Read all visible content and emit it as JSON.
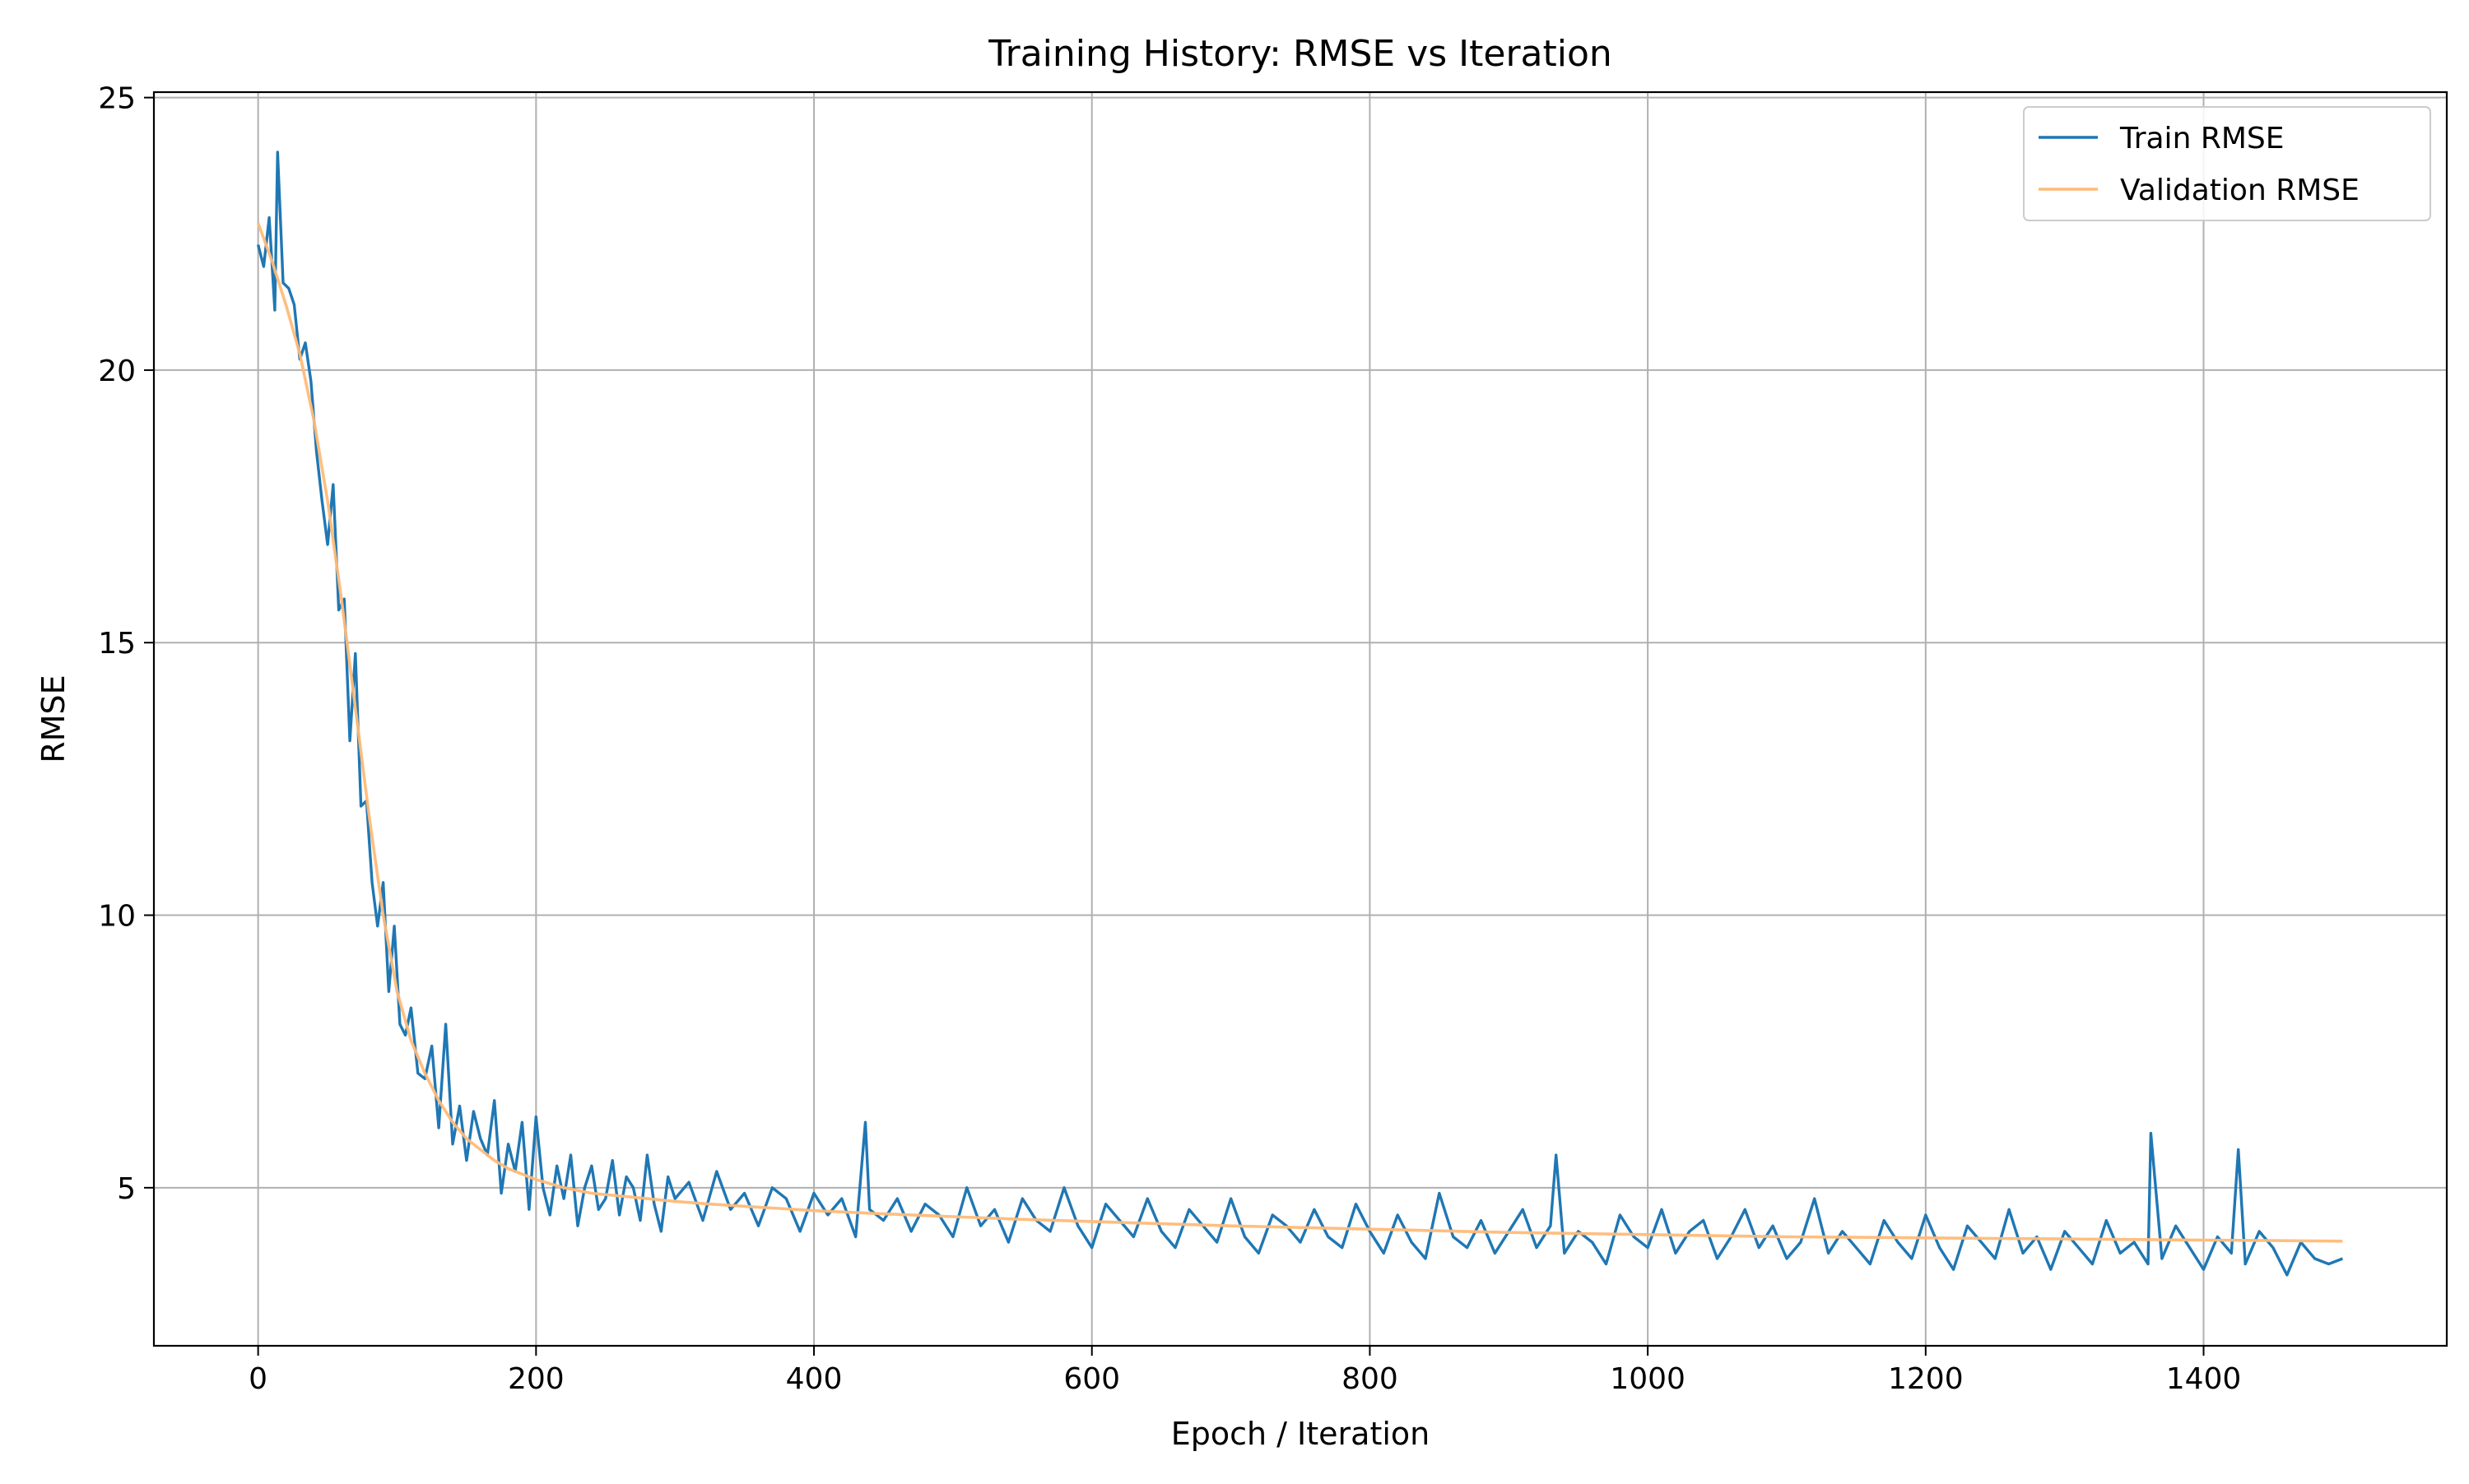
{
  "chart_data": {
    "type": "line",
    "title": "Training History: RMSE vs Iteration",
    "xlabel": "Epoch / Iteration",
    "ylabel": "RMSE",
    "xlim": [
      -75,
      1575
    ],
    "ylim": [
      2.1,
      25.1
    ],
    "xticks": [
      0,
      200,
      400,
      600,
      800,
      1000,
      1200,
      1400
    ],
    "yticks": [
      5,
      10,
      15,
      20,
      25
    ],
    "grid": true,
    "legend_position": "top-right",
    "series": [
      {
        "name": "Train RMSE",
        "color": "#1f77b4",
        "x": [
          0,
          4,
          8,
          12,
          14,
          18,
          22,
          26,
          30,
          34,
          38,
          42,
          46,
          50,
          54,
          58,
          62,
          66,
          70,
          74,
          78,
          82,
          86,
          90,
          94,
          98,
          102,
          106,
          110,
          115,
          120,
          125,
          130,
          135,
          140,
          145,
          150,
          155,
          160,
          165,
          170,
          175,
          180,
          185,
          190,
          195,
          200,
          205,
          210,
          215,
          220,
          225,
          230,
          235,
          240,
          245,
          250,
          255,
          260,
          265,
          270,
          275,
          280,
          285,
          290,
          295,
          300,
          310,
          320,
          330,
          340,
          350,
          360,
          370,
          380,
          390,
          400,
          410,
          420,
          430,
          437,
          440,
          450,
          460,
          470,
          480,
          490,
          500,
          510,
          520,
          530,
          540,
          550,
          560,
          570,
          580,
          590,
          600,
          610,
          620,
          630,
          640,
          650,
          660,
          670,
          680,
          690,
          700,
          710,
          720,
          730,
          740,
          750,
          760,
          770,
          780,
          790,
          800,
          810,
          820,
          830,
          840,
          850,
          860,
          870,
          880,
          890,
          900,
          910,
          920,
          930,
          934,
          940,
          950,
          960,
          970,
          980,
          990,
          1000,
          1010,
          1020,
          1030,
          1040,
          1050,
          1060,
          1070,
          1080,
          1090,
          1100,
          1110,
          1120,
          1130,
          1140,
          1150,
          1160,
          1170,
          1180,
          1190,
          1200,
          1210,
          1220,
          1230,
          1240,
          1250,
          1260,
          1270,
          1280,
          1290,
          1300,
          1310,
          1320,
          1330,
          1340,
          1350,
          1360,
          1362,
          1370,
          1380,
          1390,
          1400,
          1410,
          1420,
          1425,
          1430,
          1440,
          1450,
          1460,
          1470,
          1480,
          1490,
          1500
        ],
        "y": [
          22.3,
          21.9,
          22.8,
          21.1,
          24.0,
          21.6,
          21.5,
          21.2,
          20.2,
          20.5,
          19.8,
          18.5,
          17.6,
          16.8,
          17.9,
          15.6,
          15.8,
          13.2,
          14.8,
          12.0,
          12.1,
          10.6,
          9.8,
          10.6,
          8.6,
          9.8,
          8.0,
          7.8,
          8.3,
          7.1,
          7.0,
          7.6,
          6.1,
          8.0,
          5.8,
          6.5,
          5.5,
          6.4,
          5.9,
          5.6,
          6.6,
          4.9,
          5.8,
          5.3,
          6.2,
          4.6,
          6.3,
          5.0,
          4.5,
          5.4,
          4.8,
          5.6,
          4.3,
          5.0,
          5.4,
          4.6,
          4.8,
          5.5,
          4.5,
          5.2,
          5.0,
          4.4,
          5.6,
          4.7,
          4.2,
          5.2,
          4.8,
          5.1,
          4.4,
          5.3,
          4.6,
          4.9,
          4.3,
          5.0,
          4.8,
          4.2,
          4.9,
          4.5,
          4.8,
          4.1,
          6.2,
          4.6,
          4.4,
          4.8,
          4.2,
          4.7,
          4.5,
          4.1,
          5.0,
          4.3,
          4.6,
          4.0,
          4.8,
          4.4,
          4.2,
          5.0,
          4.3,
          3.9,
          4.7,
          4.4,
          4.1,
          4.8,
          4.2,
          3.9,
          4.6,
          4.3,
          4.0,
          4.8,
          4.1,
          3.8,
          4.5,
          4.3,
          4.0,
          4.6,
          4.1,
          3.9,
          4.7,
          4.2,
          3.8,
          4.5,
          4.0,
          3.7,
          4.9,
          4.1,
          3.9,
          4.4,
          3.8,
          4.2,
          4.6,
          3.9,
          4.3,
          5.6,
          3.8,
          4.2,
          4.0,
          3.6,
          4.5,
          4.1,
          3.9,
          4.6,
          3.8,
          4.2,
          4.4,
          3.7,
          4.1,
          4.6,
          3.9,
          4.3,
          3.7,
          4.0,
          4.8,
          3.8,
          4.2,
          3.9,
          3.6,
          4.4,
          4.0,
          3.7,
          4.5,
          3.9,
          3.5,
          4.3,
          4.0,
          3.7,
          4.6,
          3.8,
          4.1,
          3.5,
          4.2,
          3.9,
          3.6,
          4.4,
          3.8,
          4.0,
          3.6,
          6.0,
          3.7,
          4.3,
          3.9,
          3.5,
          4.1,
          3.8,
          5.7,
          3.6,
          4.2,
          3.9,
          3.4,
          4.0,
          3.7,
          3.6,
          3.7
        ]
      },
      {
        "name": "Validation RMSE",
        "color": "#ffbb78",
        "x": [
          0,
          10,
          20,
          30,
          40,
          50,
          60,
          70,
          80,
          90,
          100,
          110,
          120,
          130,
          140,
          150,
          160,
          170,
          180,
          190,
          200,
          220,
          240,
          260,
          280,
          300,
          325,
          350,
          375,
          400,
          450,
          500,
          550,
          600,
          650,
          700,
          750,
          800,
          850,
          900,
          950,
          1000,
          1050,
          1100,
          1150,
          1200,
          1250,
          1300,
          1350,
          1400,
          1450,
          1500
        ],
        "y": [
          22.7,
          22.0,
          21.2,
          20.3,
          19.1,
          17.6,
          15.8,
          13.8,
          11.8,
          10.0,
          8.6,
          7.7,
          7.1,
          6.6,
          6.2,
          5.9,
          5.7,
          5.5,
          5.35,
          5.25,
          5.15,
          5.0,
          4.9,
          4.85,
          4.8,
          4.75,
          4.7,
          4.66,
          4.62,
          4.58,
          4.52,
          4.47,
          4.42,
          4.38,
          4.34,
          4.3,
          4.27,
          4.24,
          4.21,
          4.18,
          4.16,
          4.14,
          4.12,
          4.1,
          4.09,
          4.08,
          4.07,
          4.06,
          4.05,
          4.04,
          4.03,
          4.02
        ]
      }
    ]
  }
}
